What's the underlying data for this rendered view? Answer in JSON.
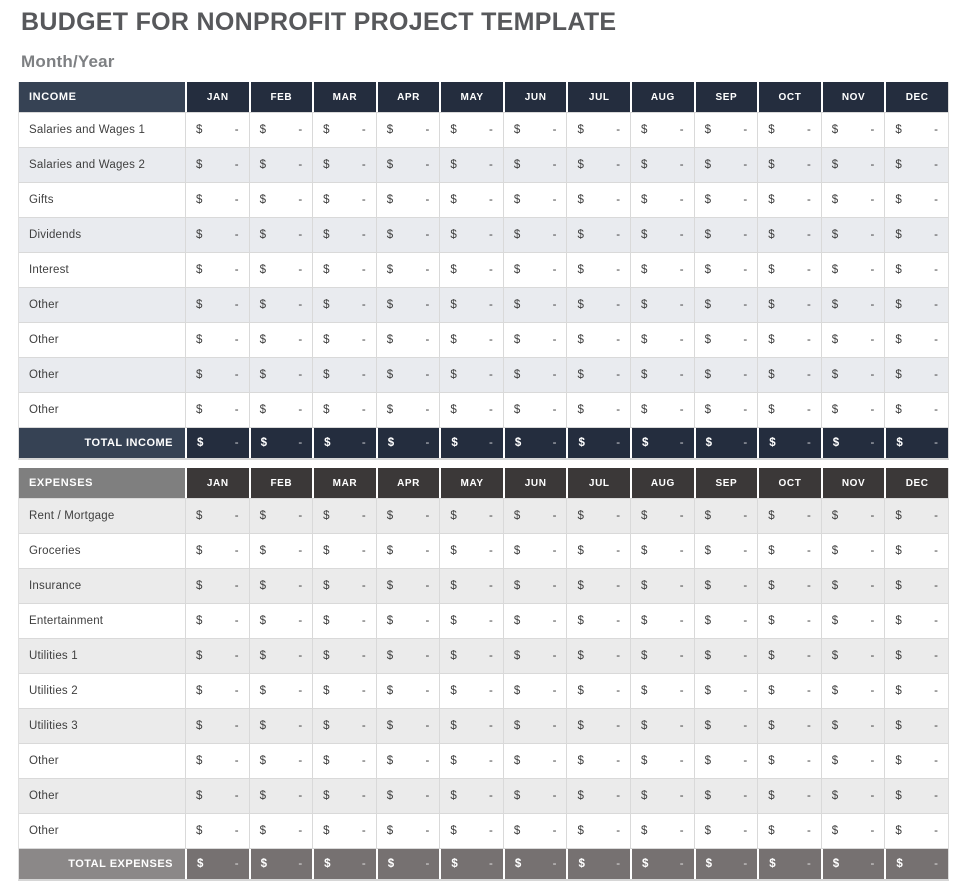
{
  "page": {
    "title": "BUDGET FOR NONPROFIT PROJECT TEMPLATE",
    "subtitle": "Month/Year"
  },
  "months": [
    "JAN",
    "FEB",
    "MAR",
    "APR",
    "MAY",
    "JUN",
    "JUL",
    "AUG",
    "SEP",
    "OCT",
    "NOV",
    "DEC"
  ],
  "currency_symbol": "$",
  "empty_value": "-",
  "income": {
    "header": "INCOME",
    "rows": [
      "Salaries and Wages 1",
      "Salaries and Wages 2",
      "Gifts",
      "Dividends",
      "Interest",
      "Other",
      "Other",
      "Other",
      "Other"
    ],
    "total_label": "TOTAL INCOME"
  },
  "expenses": {
    "header": "EXPENSES",
    "rows": [
      "Rent / Mortgage",
      "Groceries",
      "Insurance",
      "Entertainment",
      "Utilities 1",
      "Utilities 2",
      "Utilities 3",
      "Other",
      "Other",
      "Other"
    ],
    "total_label": "TOTAL EXPENSES"
  },
  "colors": {
    "title_text": "#57585b",
    "subtitle_text": "#7e8083",
    "income_header_label_bg": "#364254",
    "income_header_month_bg": "#242d3e",
    "income_total_label_bg": "#364254",
    "income_total_month_bg": "#242d3e",
    "income_alt_row_bg": "#e9ebef",
    "expenses_header_label_bg": "#7f7f7f",
    "expenses_header_month_bg": "#3b3838",
    "expenses_total_label_bg": "#8b8888",
    "expenses_total_month_bg": "#767171",
    "expenses_alt_row_bg": "#ebebeb",
    "grid_line": "#d9d9d9",
    "cell_text": "#3f3f3f"
  }
}
